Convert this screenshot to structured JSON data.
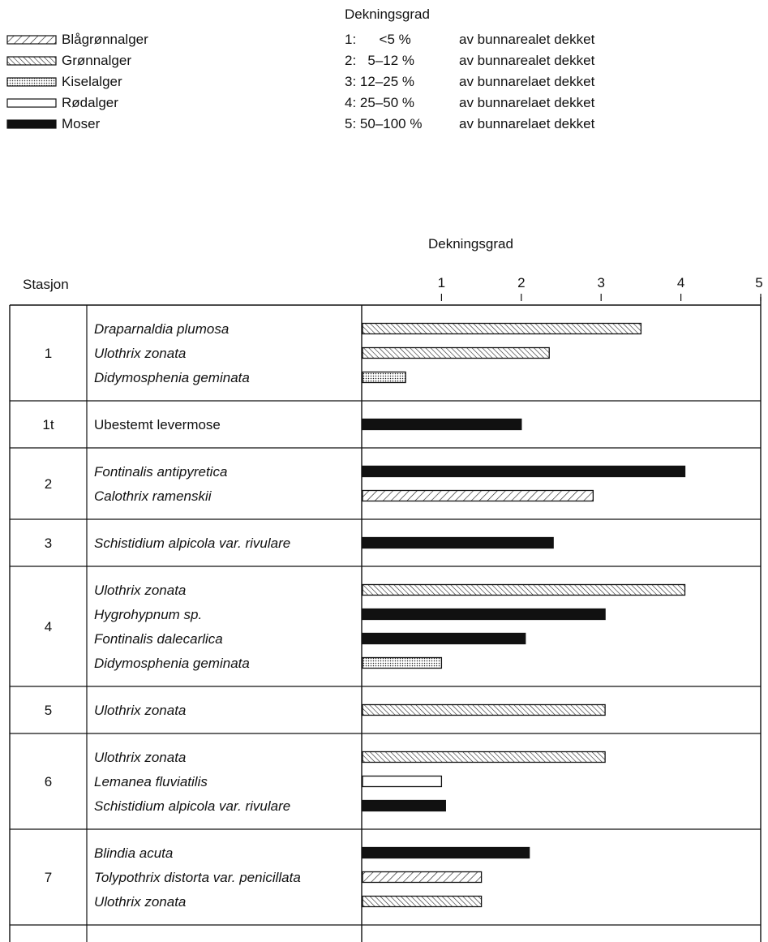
{
  "legend": [
    {
      "label": "Blågrønnalger",
      "pattern": "diag-wide"
    },
    {
      "label": "Grønnalger",
      "pattern": "diag-dense"
    },
    {
      "label": "Kiselalger",
      "pattern": "dots"
    },
    {
      "label": "Rødalger",
      "pattern": "empty"
    },
    {
      "label": "Moser",
      "pattern": "solid"
    }
  ],
  "scale_key": {
    "title": "Dekningsgrad",
    "rows": [
      {
        "label": "1:      <5 %",
        "text": "av bunnarealet dekket"
      },
      {
        "label": "2:   5–12 %",
        "text": "av bunnarealet dekket"
      },
      {
        "label": "3: 12–25 %",
        "text": "av bunnarelaet dekket"
      },
      {
        "label": "4: 25–50 %",
        "text": "av bunnarelaet dekket"
      },
      {
        "label": "5: 50–100 %",
        "text": "av bunnarelaet dekket"
      }
    ]
  },
  "chart_data": {
    "type": "bar",
    "orientation": "horizontal",
    "title": "Dekningsgrad",
    "station_header": "Stasjon",
    "x_ticks": [
      1,
      2,
      3,
      4,
      5
    ],
    "xlim": [
      0,
      5
    ],
    "groups": [
      {
        "station": "1",
        "species": [
          {
            "name": "Draparnaldia plumosa",
            "italic": true,
            "group": "Grønnalger",
            "value": 3.5
          },
          {
            "name": "Ulothrix zonata",
            "italic": true,
            "group": "Grønnalger",
            "value": 2.35
          },
          {
            "name": "Didymosphenia geminata",
            "italic": true,
            "group": "Kiselalger",
            "value": 0.55
          }
        ]
      },
      {
        "station": "1t",
        "species": [
          {
            "name": "Ubestemt levermose",
            "italic": false,
            "group": "Moser",
            "value": 2.0
          }
        ]
      },
      {
        "station": "2",
        "species": [
          {
            "name": "Fontinalis antipyretica",
            "italic": true,
            "group": "Moser",
            "value": 4.05
          },
          {
            "name": "Calothrix ramenskii",
            "italic": true,
            "group": "Blågrønnalger",
            "value": 2.9
          }
        ]
      },
      {
        "station": "3",
        "species": [
          {
            "name": "Schistidium alpicola var. rivulare",
            "italic": true,
            "group": "Moser",
            "value": 2.4
          }
        ]
      },
      {
        "station": "4",
        "species": [
          {
            "name": "Ulothrix zonata",
            "italic": true,
            "group": "Grønnalger",
            "value": 4.05
          },
          {
            "name": "Hygrohypnum sp.",
            "italic": true,
            "group": "Moser",
            "value": 3.05
          },
          {
            "name": "Fontinalis dalecarlica",
            "italic": true,
            "group": "Moser",
            "value": 2.05
          },
          {
            "name": "Didymosphenia geminata",
            "italic": true,
            "group": "Kiselalger",
            "value": 1.0
          }
        ]
      },
      {
        "station": "5",
        "species": [
          {
            "name": "Ulothrix zonata",
            "italic": true,
            "group": "Grønnalger",
            "value": 3.05
          }
        ]
      },
      {
        "station": "6",
        "species": [
          {
            "name": "Ulothrix zonata",
            "italic": true,
            "group": "Grønnalger",
            "value": 3.05
          },
          {
            "name": "Lemanea fluviatilis",
            "italic": true,
            "group": "Rødalger",
            "value": 1.0
          },
          {
            "name": "Schistidium alpicola var. rivulare",
            "italic": true,
            "group": "Moser",
            "value": 1.05
          }
        ]
      },
      {
        "station": "7",
        "species": [
          {
            "name": "Blindia acuta",
            "italic": true,
            "group": "Moser",
            "value": 2.1
          },
          {
            "name": "Tolypothrix distorta var. penicillata",
            "italic": true,
            "group": "Blågrønnalger",
            "value": 1.5
          },
          {
            "name": "Ulothrix zonata",
            "italic": true,
            "group": "Grønnalger",
            "value": 1.5
          }
        ]
      }
    ]
  }
}
